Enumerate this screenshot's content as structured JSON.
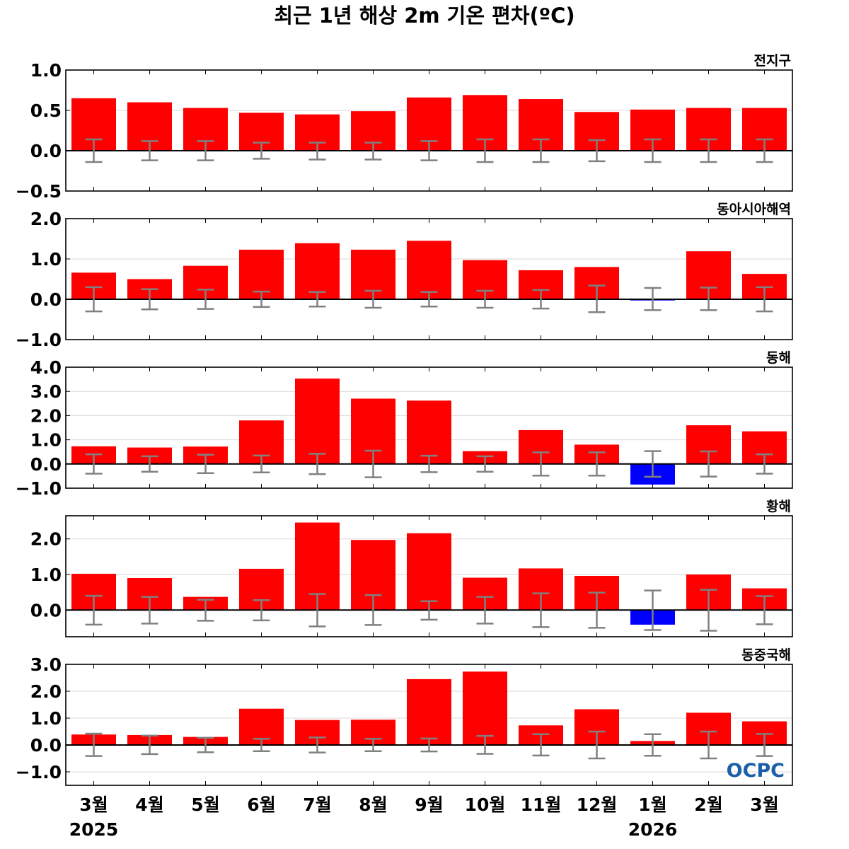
{
  "title": "최근 1년 해상 2m 기온 편차(ºC)",
  "logo_text": "OCPC",
  "colors": {
    "positive": "#ff0000",
    "negative": "#0000ff",
    "errorbar": "#808080",
    "grid": "#d9d9d9",
    "zero": "#000000"
  },
  "chart_data": [
    {
      "type": "bar",
      "panel_title": "전지구",
      "categories": [
        "3월",
        "4월",
        "5월",
        "6월",
        "7월",
        "8월",
        "9월",
        "10월",
        "11월",
        "12월",
        "1월",
        "2월",
        "3월"
      ],
      "values": [
        0.65,
        0.6,
        0.53,
        0.47,
        0.45,
        0.49,
        0.66,
        0.69,
        0.64,
        0.48,
        0.51,
        0.53,
        0.53
      ],
      "error_low": [
        -0.14,
        -0.12,
        -0.12,
        -0.1,
        -0.11,
        -0.11,
        -0.12,
        -0.14,
        -0.14,
        -0.13,
        -0.14,
        -0.14,
        -0.14
      ],
      "error_high": [
        0.14,
        0.12,
        0.12,
        0.1,
        0.1,
        0.1,
        0.12,
        0.14,
        0.14,
        0.13,
        0.14,
        0.14,
        0.14
      ],
      "ylim": [
        -0.5,
        1.0
      ],
      "yticks": [
        -0.5,
        0.0,
        0.5,
        1.0
      ],
      "ytick_labels": [
        "−0.5",
        "0.0",
        "0.5",
        "1.0"
      ],
      "grid": true
    },
    {
      "type": "bar",
      "panel_title": "동아시아해역",
      "categories": [
        "3월",
        "4월",
        "5월",
        "6월",
        "7월",
        "8월",
        "9월",
        "10월",
        "11월",
        "12월",
        "1월",
        "2월",
        "3월"
      ],
      "values": [
        0.66,
        0.5,
        0.83,
        1.23,
        1.39,
        1.23,
        1.45,
        0.97,
        0.72,
        0.8,
        -0.03,
        1.19,
        0.63
      ],
      "error_low": [
        -0.3,
        -0.25,
        -0.24,
        -0.19,
        -0.18,
        -0.21,
        -0.18,
        -0.21,
        -0.23,
        -0.32,
        -0.27,
        -0.27,
        -0.3
      ],
      "error_high": [
        0.3,
        0.25,
        0.24,
        0.19,
        0.18,
        0.21,
        0.18,
        0.21,
        0.23,
        0.34,
        0.28,
        0.29,
        0.3
      ],
      "ylim": [
        -1.0,
        2.0
      ],
      "yticks": [
        -1.0,
        0.0,
        1.0,
        2.0
      ],
      "ytick_labels": [
        "−1.0",
        "0.0",
        "1.0",
        "2.0"
      ],
      "grid": true
    },
    {
      "type": "bar",
      "panel_title": "동해",
      "categories": [
        "3월",
        "4월",
        "5월",
        "6월",
        "7월",
        "8월",
        "9월",
        "10월",
        "11월",
        "12월",
        "1월",
        "2월",
        "3월"
      ],
      "values": [
        0.73,
        0.68,
        0.72,
        1.8,
        3.53,
        2.7,
        2.62,
        0.53,
        1.4,
        0.8,
        -0.85,
        1.6,
        1.35
      ],
      "error_low": [
        -0.4,
        -0.32,
        -0.38,
        -0.35,
        -0.42,
        -0.55,
        -0.34,
        -0.32,
        -0.48,
        -0.48,
        -0.53,
        -0.52,
        -0.4
      ],
      "error_high": [
        0.4,
        0.32,
        0.38,
        0.35,
        0.42,
        0.55,
        0.34,
        0.32,
        0.48,
        0.48,
        0.53,
        0.52,
        0.4
      ],
      "ylim": [
        -1.0,
        4.0
      ],
      "yticks": [
        -1.0,
        0.0,
        1.0,
        2.0,
        3.0,
        4.0
      ],
      "ytick_labels": [
        "−1.0",
        "0.0",
        "1.0",
        "2.0",
        "3.0",
        "4.0"
      ],
      "grid": true
    },
    {
      "type": "bar",
      "panel_title": "황해",
      "categories": [
        "3월",
        "4월",
        "5월",
        "6월",
        "7월",
        "8월",
        "9월",
        "10월",
        "11월",
        "12월",
        "1월",
        "2월",
        "3월"
      ],
      "values": [
        1.02,
        0.9,
        0.37,
        1.16,
        2.46,
        1.97,
        2.16,
        0.91,
        1.17,
        0.96,
        -0.41,
        1.0,
        0.61
      ],
      "error_low": [
        -0.41,
        -0.38,
        -0.3,
        -0.29,
        -0.46,
        -0.42,
        -0.27,
        -0.38,
        -0.48,
        -0.5,
        -0.56,
        -0.58,
        -0.4
      ],
      "error_high": [
        0.4,
        0.37,
        0.29,
        0.28,
        0.45,
        0.42,
        0.25,
        0.37,
        0.47,
        0.49,
        0.55,
        0.57,
        0.39
      ],
      "ylim": [
        -0.75,
        2.65
      ],
      "yticks": [
        0.0,
        1.0,
        2.0
      ],
      "ytick_labels": [
        "0.0",
        "1.0",
        "2.0"
      ],
      "grid": true
    },
    {
      "type": "bar",
      "panel_title": "동중국해",
      "categories": [
        "3월",
        "4월",
        "5월",
        "6월",
        "7월",
        "8월",
        "9월",
        "10월",
        "11월",
        "12월",
        "1월",
        "2월",
        "3월"
      ],
      "values": [
        0.39,
        0.37,
        0.3,
        1.35,
        0.93,
        0.94,
        2.45,
        2.73,
        0.73,
        1.33,
        0.15,
        1.2,
        0.88
      ],
      "error_low": [
        -0.41,
        -0.34,
        -0.27,
        -0.23,
        -0.28,
        -0.23,
        -0.24,
        -0.33,
        -0.39,
        -0.5,
        -0.4,
        -0.5,
        -0.41
      ],
      "error_high": [
        0.42,
        0.35,
        0.27,
        0.23,
        0.28,
        0.23,
        0.24,
        0.34,
        0.4,
        0.5,
        0.4,
        0.5,
        0.41
      ],
      "ylim": [
        -1.5,
        3.0
      ],
      "yticks": [
        -1.0,
        0.0,
        1.0,
        2.0,
        3.0
      ],
      "ytick_labels": [
        "−1.0",
        "0.0",
        "1.0",
        "2.0",
        "3.0"
      ],
      "grid": true
    }
  ],
  "x_axis": {
    "month_labels": [
      "3월",
      "4월",
      "5월",
      "6월",
      "7월",
      "8월",
      "9월",
      "10월",
      "11월",
      "12월",
      "1월",
      "2월",
      "3월"
    ],
    "year_labels": [
      {
        "text": "2025",
        "under_index": 0
      },
      {
        "text": "2026",
        "under_index": 10
      }
    ]
  }
}
